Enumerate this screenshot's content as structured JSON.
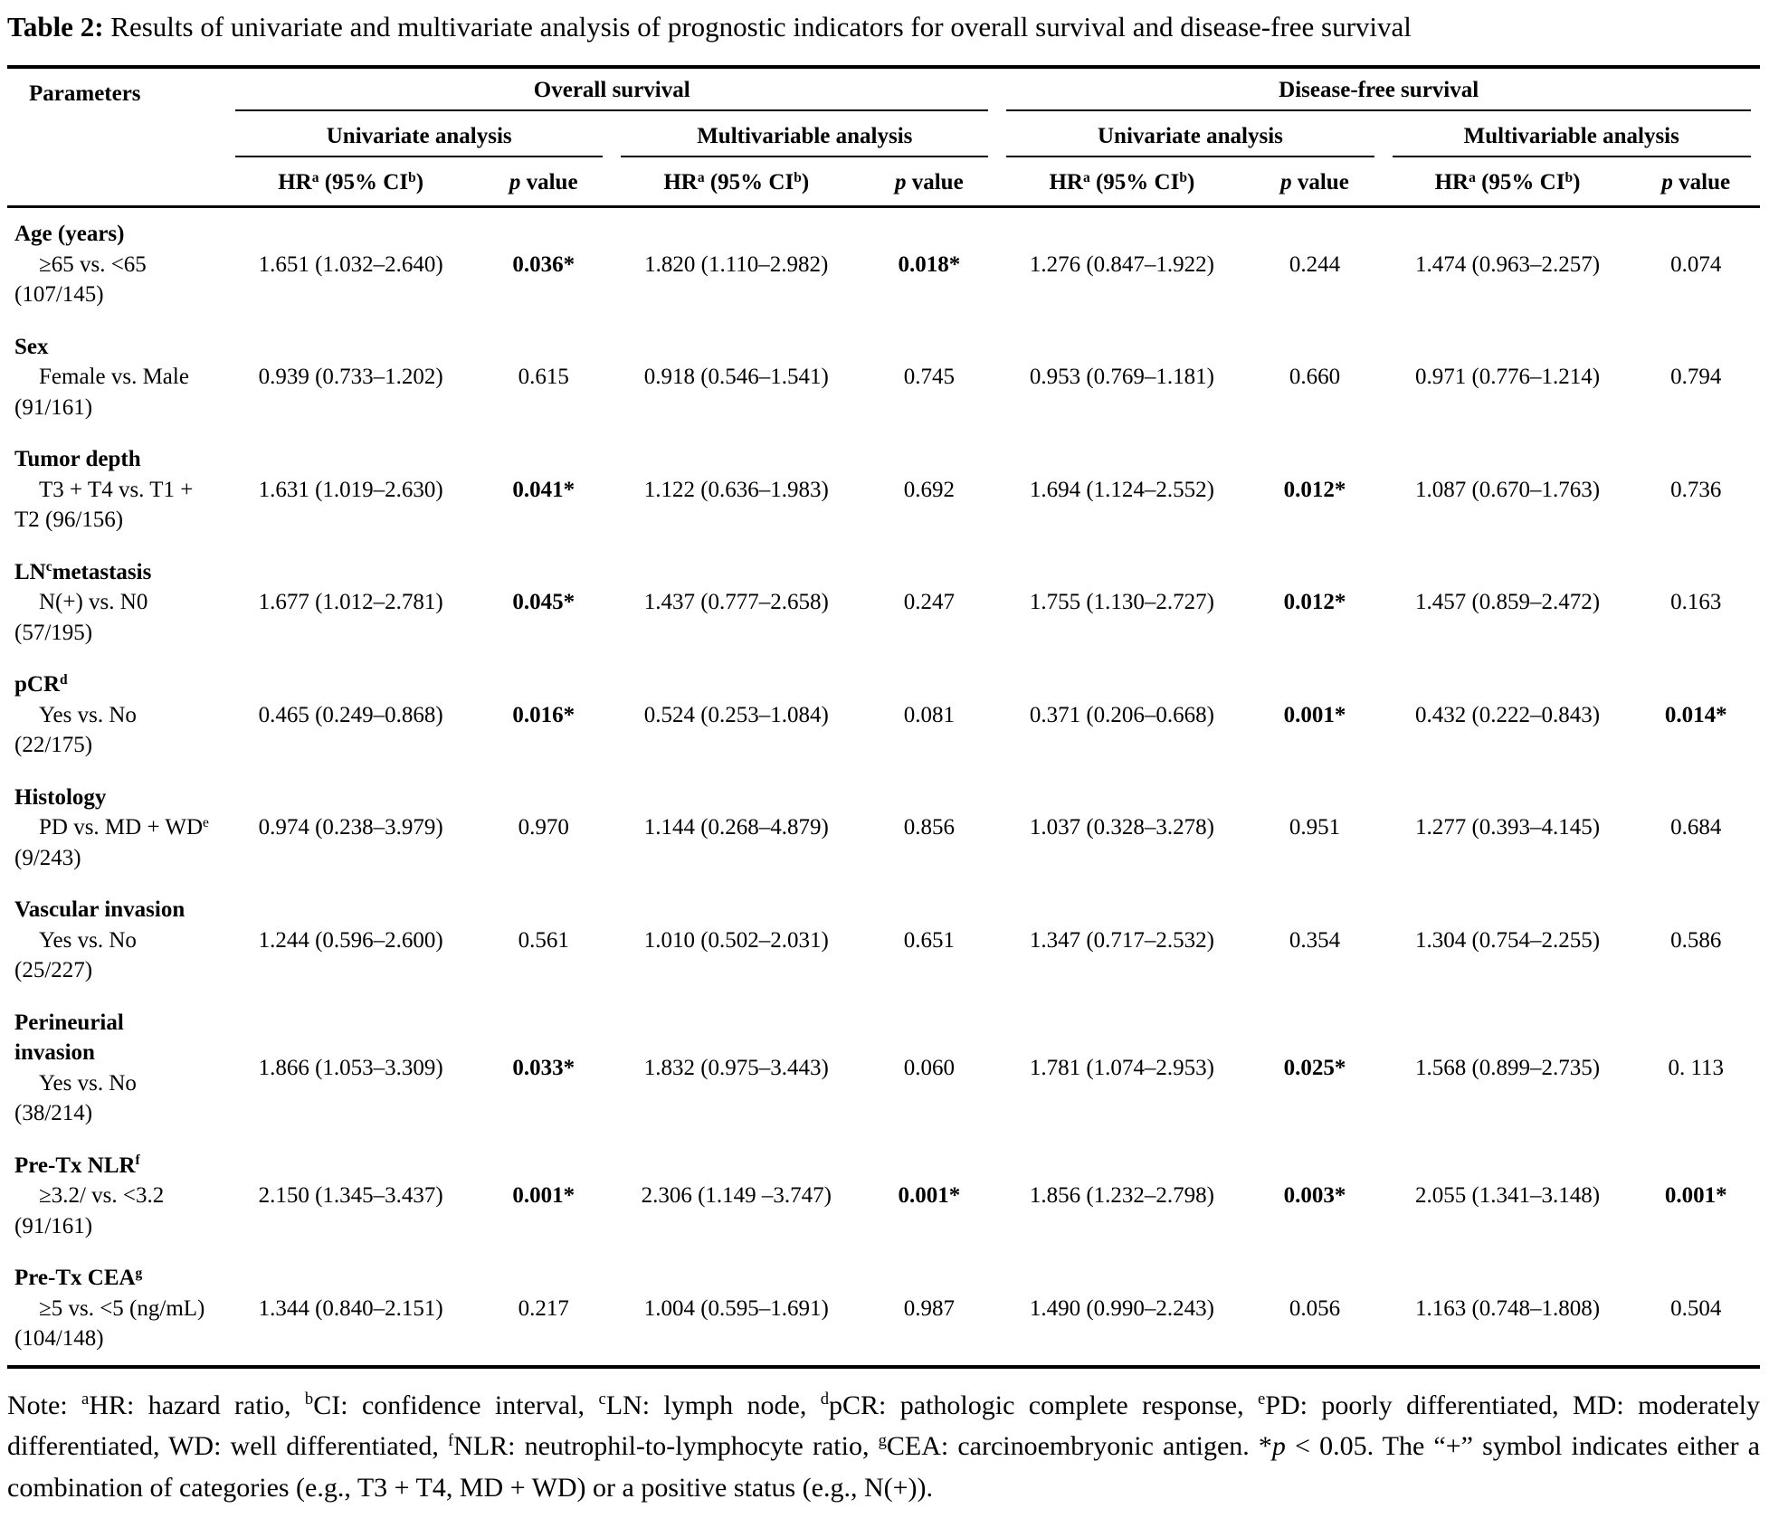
{
  "caption": {
    "label": "Table 2:",
    "text": "Results of univariate and multivariate analysis of prognostic indicators for overall survival and disease-free survival"
  },
  "table": {
    "param_header": "Parameters",
    "groups": [
      {
        "label": "Overall survival"
      },
      {
        "label": "Disease-free survival"
      }
    ],
    "subgroups": [
      {
        "label": "Univariate analysis"
      },
      {
        "label": "Multivariable analysis"
      },
      {
        "label": "Univariate analysis"
      },
      {
        "label": "Multivariable analysis"
      }
    ],
    "hr_header": "HR^a^ (95% CI^b^)",
    "p_header": "~p~ value",
    "rows": [
      {
        "id": "age",
        "param_lines": [
          {
            "text": "Age (years)",
            "bold": true,
            "indent": false
          },
          {
            "text": "≥65 vs. <65",
            "bold": false,
            "indent": true
          },
          {
            "text": "(107/145)",
            "bold": false,
            "indent": false
          }
        ],
        "values": [
          {
            "hr": "1.651 (1.032–2.640)",
            "p": "0.036*",
            "sig": true
          },
          {
            "hr": "1.820 (1.110–2.982)",
            "p": "0.018*",
            "sig": true
          },
          {
            "hr": "1.276 (0.847–1.922)",
            "p": "0.244",
            "sig": false
          },
          {
            "hr": "1.474 (0.963–2.257)",
            "p": "0.074",
            "sig": false
          }
        ]
      },
      {
        "id": "sex",
        "param_lines": [
          {
            "text": "Sex",
            "bold": true,
            "indent": false
          },
          {
            "text": "Female vs. Male",
            "bold": false,
            "indent": true
          },
          {
            "text": "(91/161)",
            "bold": false,
            "indent": false
          }
        ],
        "values": [
          {
            "hr": "0.939 (0.733–1.202)",
            "p": "0.615",
            "sig": false
          },
          {
            "hr": "0.918 (0.546–1.541)",
            "p": "0.745",
            "sig": false
          },
          {
            "hr": "0.953 (0.769–1.181)",
            "p": "0.660",
            "sig": false
          },
          {
            "hr": "0.971 (0.776–1.214)",
            "p": "0.794",
            "sig": false
          }
        ]
      },
      {
        "id": "tumor-depth",
        "param_lines": [
          {
            "text": "Tumor depth",
            "bold": true,
            "indent": false
          },
          {
            "text": "T3 + T4 vs. T1 +",
            "bold": false,
            "indent": true
          },
          {
            "text": "T2 (96/156)",
            "bold": false,
            "indent": false
          }
        ],
        "values": [
          {
            "hr": "1.631 (1.019–2.630)",
            "p": "0.041*",
            "sig": true
          },
          {
            "hr": "1.122 (0.636–1.983)",
            "p": "0.692",
            "sig": false
          },
          {
            "hr": "1.694 (1.124–2.552)",
            "p": "0.012*",
            "sig": true
          },
          {
            "hr": "1.087 (0.670–1.763)",
            "p": "0.736",
            "sig": false
          }
        ]
      },
      {
        "id": "ln-metastasis",
        "param_lines": [
          {
            "text": "LN^c^metastasis",
            "bold": true,
            "indent": false
          },
          {
            "text": "N(+) vs. N0",
            "bold": false,
            "indent": true
          },
          {
            "text": "(57/195)",
            "bold": false,
            "indent": false
          }
        ],
        "values": [
          {
            "hr": "1.677 (1.012–2.781)",
            "p": "0.045*",
            "sig": true
          },
          {
            "hr": "1.437 (0.777–2.658)",
            "p": "0.247",
            "sig": false
          },
          {
            "hr": "1.755 (1.130–2.727)",
            "p": "0.012*",
            "sig": true
          },
          {
            "hr": "1.457 (0.859–2.472)",
            "p": "0.163",
            "sig": false
          }
        ]
      },
      {
        "id": "pcr",
        "param_lines": [
          {
            "text": "pCR^d^",
            "bold": true,
            "indent": false
          },
          {
            "text": "Yes vs. No",
            "bold": false,
            "indent": true
          },
          {
            "text": "(22/175)",
            "bold": false,
            "indent": false
          }
        ],
        "values": [
          {
            "hr": "0.465 (0.249–0.868)",
            "p": "0.016*",
            "sig": true
          },
          {
            "hr": "0.524 (0.253–1.084)",
            "p": "0.081",
            "sig": false
          },
          {
            "hr": "0.371 (0.206–0.668)",
            "p": "0.001*",
            "sig": true
          },
          {
            "hr": "0.432 (0.222–0.843)",
            "p": "0.014*",
            "sig": true
          }
        ]
      },
      {
        "id": "histology",
        "param_lines": [
          {
            "text": "Histology",
            "bold": true,
            "indent": false
          },
          {
            "text": "PD vs. MD + WD^e^",
            "bold": false,
            "indent": true
          },
          {
            "text": "(9/243)",
            "bold": false,
            "indent": false
          }
        ],
        "values": [
          {
            "hr": "0.974 (0.238–3.979)",
            "p": "0.970",
            "sig": false
          },
          {
            "hr": "1.144 (0.268–4.879)",
            "p": "0.856",
            "sig": false
          },
          {
            "hr": "1.037 (0.328–3.278)",
            "p": "0.951",
            "sig": false
          },
          {
            "hr": "1.277 (0.393–4.145)",
            "p": "0.684",
            "sig": false
          }
        ]
      },
      {
        "id": "vascular-invasion",
        "param_lines": [
          {
            "text": "Vascular invasion",
            "bold": true,
            "indent": false
          },
          {
            "text": "Yes vs. No",
            "bold": false,
            "indent": true
          },
          {
            "text": "(25/227)",
            "bold": false,
            "indent": false
          }
        ],
        "values": [
          {
            "hr": "1.244 (0.596–2.600)",
            "p": "0.561",
            "sig": false
          },
          {
            "hr": "1.010 (0.502–2.031)",
            "p": "0.651",
            "sig": false
          },
          {
            "hr": "1.347 (0.717–2.532)",
            "p": "0.354",
            "sig": false
          },
          {
            "hr": "1.304 (0.754–2.255)",
            "p": "0.586",
            "sig": false
          }
        ]
      },
      {
        "id": "perineurial-invasion",
        "param_lines": [
          {
            "text": "Perineurial",
            "bold": true,
            "indent": false
          },
          {
            "text": "invasion",
            "bold": true,
            "indent": false
          },
          {
            "text": "Yes vs. No",
            "bold": false,
            "indent": true
          },
          {
            "text": "(38/214)",
            "bold": false,
            "indent": false
          }
        ],
        "values": [
          {
            "hr": "1.866 (1.053–3.309)",
            "p": "0.033*",
            "sig": true
          },
          {
            "hr": "1.832 (0.975–3.443)",
            "p": "0.060",
            "sig": false
          },
          {
            "hr": "1.781 (1.074–2.953)",
            "p": "0.025*",
            "sig": true
          },
          {
            "hr": "1.568 (0.899–2.735)",
            "p": "0. 113",
            "sig": false
          }
        ]
      },
      {
        "id": "pre-tx-nlr",
        "param_lines": [
          {
            "text": "Pre-Tx NLR^f^",
            "bold": true,
            "indent": false
          },
          {
            "text": "≥3.2/ vs. <3.2",
            "bold": false,
            "indent": true
          },
          {
            "text": "(91/161)",
            "bold": false,
            "indent": false
          }
        ],
        "values": [
          {
            "hr": "2.150 (1.345–3.437)",
            "p": "0.001*",
            "sig": true
          },
          {
            "hr": "2.306 (1.149 –3.747)",
            "p": "0.001*",
            "sig": true
          },
          {
            "hr": "1.856 (1.232–2.798)",
            "p": "0.003*",
            "sig": true
          },
          {
            "hr": "2.055 (1.341–3.148)",
            "p": "0.001*",
            "sig": true
          }
        ]
      },
      {
        "id": "pre-tx-cea",
        "param_lines": [
          {
            "text": "Pre-Tx CEA^g^",
            "bold": true,
            "indent": false
          },
          {
            "text": "≥5 vs. <5 (ng/mL)",
            "bold": false,
            "indent": true
          },
          {
            "text": "(104/148)",
            "bold": false,
            "indent": false
          }
        ],
        "values": [
          {
            "hr": "1.344 (0.840–2.151)",
            "p": "0.217",
            "sig": false
          },
          {
            "hr": "1.004 (0.595–1.691)",
            "p": "0.987",
            "sig": false
          },
          {
            "hr": "1.490 (0.990–2.243)",
            "p": "0.056",
            "sig": false
          },
          {
            "hr": "1.163 (0.748–1.808)",
            "p": "0.504",
            "sig": false
          }
        ]
      }
    ]
  },
  "note": "Note: ^a^HR: hazard ratio, ^b^CI: confidence interval, ^c^LN: lymph node, ^d^pCR: pathologic complete response, ^e^PD: poorly differentiated, MD: moderately differentiated, WD: well differentiated, ^f^NLR: neutrophil-to-lymphocyte ratio, ^g^CEA: carcinoembryonic antigen. *~p~ < 0.05. The “+” symbol indicates either a combination of categories (e.g., T3 + T4, MD + WD) or a positive status (e.g., N(+))."
}
